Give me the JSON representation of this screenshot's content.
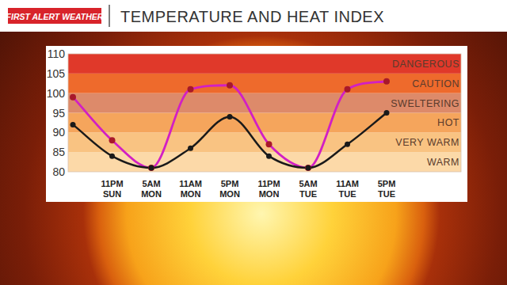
{
  "header": {
    "logo": "FIRST ALERT WEATHER"
  },
  "chart_data": {
    "type": "line",
    "title": "TEMPERATURE AND HEAT INDEX",
    "categories": [
      null,
      "11PM SUN",
      "5AM MON",
      "11AM MON",
      "5PM MON",
      "11PM MON",
      "5AM TUE",
      "11AM TUE",
      "5PM TUE"
    ],
    "series": [
      {
        "color": "#1a1a1a",
        "marker": "circle",
        "line_style": "smooth",
        "values": [
          92,
          84,
          81,
          86,
          94,
          84,
          81,
          87,
          95
        ]
      },
      {
        "color": "#d21fc4",
        "marker": "circle",
        "line_style": "smooth",
        "values": [
          99,
          88,
          81,
          101,
          102,
          87,
          81,
          101,
          103
        ]
      }
    ],
    "ylim": [
      80,
      110
    ],
    "yticks": [
      80,
      85,
      90,
      95,
      100,
      105,
      110
    ],
    "grid": false,
    "bands": [
      {
        "from": 80,
        "to": 85,
        "label": "WARM",
        "color": "#fcd9a8"
      },
      {
        "from": 85,
        "to": 90,
        "label": "VERY WARM",
        "color": "#f9c382"
      },
      {
        "from": 90,
        "to": 95,
        "label": "HOT",
        "color": "#f5a55c"
      },
      {
        "from": 95,
        "to": 100,
        "label": "SWELTERING",
        "color": "#dd8a6a"
      },
      {
        "from": 100,
        "to": 105,
        "label": "CAUTION",
        "color": "#ee6a2c"
      },
      {
        "from": 105,
        "to": 110,
        "label": "DANGEROUS",
        "color": "#e0392a"
      }
    ]
  }
}
